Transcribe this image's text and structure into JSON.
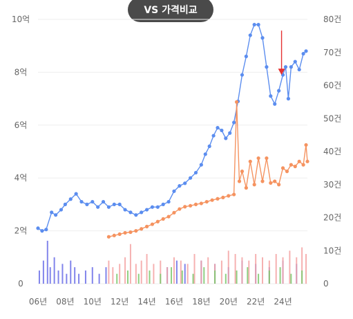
{
  "header": {
    "title": "VS 가격비교"
  },
  "chart_data": {
    "type": "line",
    "title": "VS 가격비교",
    "x_ticks": [
      "06년",
      "08년",
      "10년",
      "12년",
      "14년",
      "16년",
      "18년",
      "20년",
      "22년",
      "24년"
    ],
    "y_left_ticks": [
      "0",
      "2억",
      "4억",
      "6억",
      "8억",
      "10억"
    ],
    "y_left_range": [
      0,
      10
    ],
    "y_right_ticks": [
      "0",
      "10건",
      "20건",
      "30건",
      "40건",
      "50건",
      "60건",
      "70건",
      "80건"
    ],
    "y_right_range": [
      0,
      80
    ],
    "x_range": [
      2006,
      2025.8
    ],
    "grid": true,
    "colors": {
      "blue": "#5b8def",
      "orange": "#f59360",
      "bar_blue": "#6b6fe8",
      "bar_pink": "#f5a3a3",
      "bar_green": "#7bc86c",
      "arrow": "#e53030",
      "grid": "#eeeeee"
    },
    "series": [
      {
        "axis": "left",
        "color": "#5b8def",
        "points": [
          [
            2006.0,
            2.1
          ],
          [
            2006.3,
            2.0
          ],
          [
            2006.6,
            2.05
          ],
          [
            2007.0,
            2.7
          ],
          [
            2007.3,
            2.6
          ],
          [
            2007.7,
            2.8
          ],
          [
            2008.0,
            3.0
          ],
          [
            2008.4,
            3.2
          ],
          [
            2008.8,
            3.4
          ],
          [
            2009.2,
            3.1
          ],
          [
            2009.6,
            3.0
          ],
          [
            2010.0,
            3.1
          ],
          [
            2010.4,
            2.9
          ],
          [
            2010.8,
            3.1
          ],
          [
            2011.2,
            2.9
          ],
          [
            2011.6,
            3.0
          ],
          [
            2012.0,
            3.0
          ],
          [
            2012.4,
            2.8
          ],
          [
            2012.8,
            2.7
          ],
          [
            2013.2,
            2.6
          ],
          [
            2013.6,
            2.7
          ],
          [
            2014.0,
            2.8
          ],
          [
            2014.4,
            2.9
          ],
          [
            2014.8,
            2.9
          ],
          [
            2015.2,
            3.0
          ],
          [
            2015.6,
            3.1
          ],
          [
            2016.0,
            3.5
          ],
          [
            2016.4,
            3.7
          ],
          [
            2016.8,
            3.8
          ],
          [
            2017.2,
            4.0
          ],
          [
            2017.6,
            4.2
          ],
          [
            2018.0,
            4.5
          ],
          [
            2018.3,
            4.9
          ],
          [
            2018.6,
            5.2
          ],
          [
            2018.9,
            5.6
          ],
          [
            2019.2,
            5.9
          ],
          [
            2019.5,
            5.8
          ],
          [
            2019.8,
            5.5
          ],
          [
            2020.1,
            5.7
          ],
          [
            2020.4,
            6.1
          ],
          [
            2020.7,
            6.9
          ],
          [
            2021.0,
            7.9
          ],
          [
            2021.3,
            8.6
          ],
          [
            2021.6,
            9.4
          ],
          [
            2021.9,
            9.8
          ],
          [
            2022.2,
            9.8
          ],
          [
            2022.5,
            9.3
          ],
          [
            2022.8,
            8.2
          ],
          [
            2023.1,
            7.1
          ],
          [
            2023.4,
            6.8
          ],
          [
            2023.7,
            7.3
          ],
          [
            2024.0,
            7.9
          ],
          [
            2024.2,
            8.2
          ],
          [
            2024.4,
            7.0
          ],
          [
            2024.6,
            8.2
          ],
          [
            2024.9,
            8.4
          ],
          [
            2025.2,
            8.1
          ],
          [
            2025.5,
            8.7
          ],
          [
            2025.7,
            8.8
          ]
        ]
      },
      {
        "axis": "right",
        "color": "#f59360",
        "points": [
          [
            2011.2,
            14.2
          ],
          [
            2011.6,
            14.6
          ],
          [
            2012.0,
            15.0
          ],
          [
            2012.4,
            15.4
          ],
          [
            2012.8,
            15.6
          ],
          [
            2013.2,
            16.0
          ],
          [
            2013.6,
            16.6
          ],
          [
            2014.0,
            17.3
          ],
          [
            2014.4,
            18.0
          ],
          [
            2014.8,
            18.8
          ],
          [
            2015.2,
            19.6
          ],
          [
            2015.6,
            20.3
          ],
          [
            2016.0,
            21.5
          ],
          [
            2016.4,
            22.6
          ],
          [
            2016.8,
            23.3
          ],
          [
            2017.2,
            23.6
          ],
          [
            2017.6,
            24.0
          ],
          [
            2018.0,
            24.3
          ],
          [
            2018.4,
            24.8
          ],
          [
            2018.8,
            25.3
          ],
          [
            2019.2,
            25.7
          ],
          [
            2019.6,
            26.1
          ],
          [
            2020.0,
            26.6
          ],
          [
            2020.4,
            27.0
          ],
          [
            2020.6,
            55.0
          ],
          [
            2020.8,
            31.0
          ],
          [
            2021.0,
            34.0
          ],
          [
            2021.3,
            29.0
          ],
          [
            2021.6,
            37.0
          ],
          [
            2021.9,
            30.0
          ],
          [
            2022.2,
            38.0
          ],
          [
            2022.5,
            31.0
          ],
          [
            2022.8,
            38.0
          ],
          [
            2023.1,
            30.5
          ],
          [
            2023.4,
            31.0
          ],
          [
            2023.7,
            30.0
          ],
          [
            2024.0,
            35.0
          ],
          [
            2024.3,
            34.0
          ],
          [
            2024.6,
            36.0
          ],
          [
            2024.9,
            35.5
          ],
          [
            2025.2,
            37.0
          ],
          [
            2025.5,
            36.0
          ],
          [
            2025.7,
            42.0
          ],
          [
            2025.8,
            37.0
          ]
        ]
      }
    ],
    "bars": [
      {
        "color": "#6b6fe8",
        "values": [
          [
            2006.1,
            4
          ],
          [
            2006.4,
            7
          ],
          [
            2006.7,
            13
          ],
          [
            2006.9,
            5
          ],
          [
            2007.2,
            8
          ],
          [
            2007.5,
            4
          ],
          [
            2007.8,
            6
          ],
          [
            2008.1,
            3
          ],
          [
            2008.4,
            7
          ],
          [
            2008.7,
            5
          ],
          [
            2009.0,
            3
          ],
          [
            2009.5,
            4
          ],
          [
            2010.0,
            5
          ],
          [
            2010.5,
            3
          ],
          [
            2011.0,
            5
          ],
          [
            2015.5,
            5
          ],
          [
            2016.2,
            7
          ],
          [
            2016.8,
            6
          ],
          [
            2018.0,
            7
          ],
          [
            2019.0,
            6
          ],
          [
            2020.0,
            5
          ],
          [
            2021.0,
            7
          ],
          [
            2022.0,
            6
          ],
          [
            2023.0,
            5
          ],
          [
            2024.0,
            7
          ],
          [
            2025.0,
            6
          ]
        ]
      },
      {
        "color": "#f5a3a3",
        "values": [
          [
            2011.2,
            7
          ],
          [
            2011.5,
            5
          ],
          [
            2012.0,
            6
          ],
          [
            2012.4,
            8
          ],
          [
            2012.8,
            12
          ],
          [
            2013.2,
            6
          ],
          [
            2013.6,
            7
          ],
          [
            2014.0,
            9
          ],
          [
            2014.5,
            6
          ],
          [
            2015.0,
            7
          ],
          [
            2015.5,
            5
          ],
          [
            2016.0,
            8
          ],
          [
            2016.5,
            7
          ],
          [
            2017.0,
            6
          ],
          [
            2017.5,
            9
          ],
          [
            2018.0,
            7
          ],
          [
            2018.5,
            8
          ],
          [
            2019.0,
            6
          ],
          [
            2019.5,
            7
          ],
          [
            2020.0,
            10
          ],
          [
            2020.5,
            9
          ],
          [
            2021.0,
            8
          ],
          [
            2021.5,
            7
          ],
          [
            2022.0,
            9
          ],
          [
            2022.5,
            8
          ],
          [
            2023.0,
            7
          ],
          [
            2023.5,
            9
          ],
          [
            2024.0,
            8
          ],
          [
            2024.5,
            10
          ],
          [
            2025.0,
            8
          ],
          [
            2025.4,
            11
          ],
          [
            2025.7,
            9
          ]
        ]
      },
      {
        "color": "#7bc86c",
        "values": [
          [
            2011.8,
            3
          ],
          [
            2012.6,
            4
          ],
          [
            2013.4,
            3
          ],
          [
            2014.2,
            4
          ],
          [
            2015.0,
            3
          ],
          [
            2015.8,
            5
          ],
          [
            2016.6,
            4
          ],
          [
            2017.4,
            3
          ],
          [
            2018.2,
            5
          ],
          [
            2019.0,
            4
          ],
          [
            2019.8,
            3
          ],
          [
            2020.6,
            4
          ],
          [
            2021.4,
            5
          ],
          [
            2022.2,
            3
          ],
          [
            2023.0,
            4
          ],
          [
            2023.8,
            5
          ],
          [
            2024.6,
            3
          ],
          [
            2025.4,
            4
          ]
        ]
      }
    ],
    "annotation": {
      "type": "arrow",
      "color": "#e53030",
      "x": 2023.9,
      "y_left": 7.9
    }
  }
}
